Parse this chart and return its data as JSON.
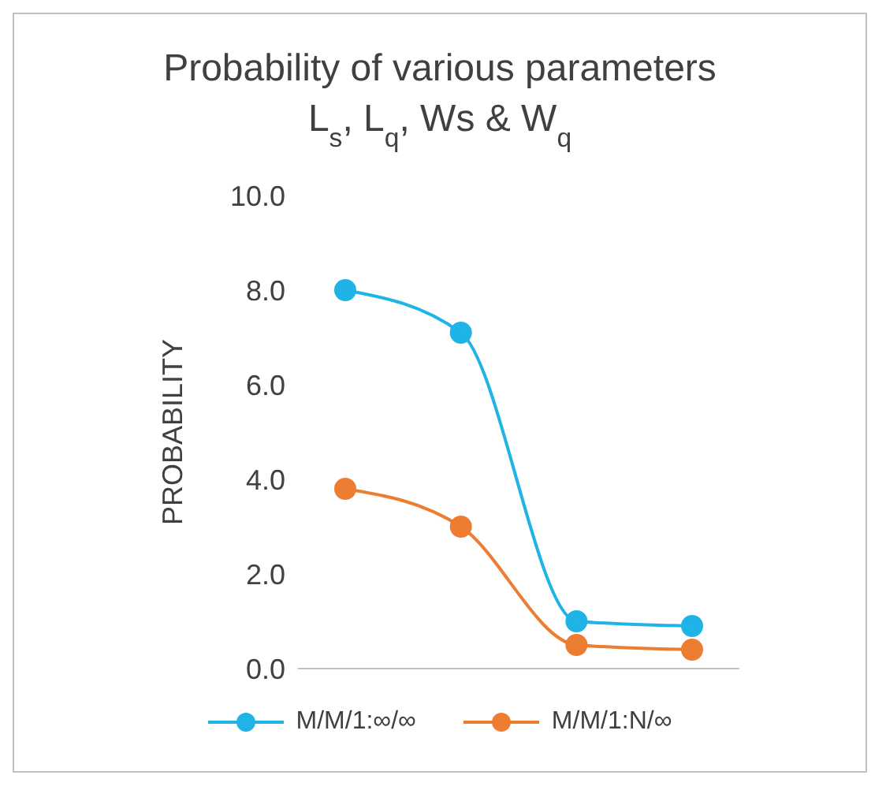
{
  "chart_data": {
    "type": "line",
    "title": "Probability of various parameters",
    "subtitle": "L$_{s}$, L$_{q}$, Ws & W$_{q}$",
    "ylabel": "PROBABILITY",
    "categories": [
      null,
      null,
      null,
      null
    ],
    "series": [
      {
        "name": "M/M/1:∞/∞",
        "color": "#1fb3e6",
        "values": [
          8.0,
          7.1,
          1.0,
          0.9
        ]
      },
      {
        "name": "M/M/1:N/∞",
        "color": "#ed7d31",
        "values": [
          3.8,
          3.0,
          0.5,
          0.4
        ]
      }
    ],
    "ylim": [
      0,
      10
    ],
    "yticks": [
      {
        "value": 0,
        "label": "0.0"
      },
      {
        "value": 2,
        "label": "2.0"
      },
      {
        "value": 4,
        "label": "4.0"
      },
      {
        "value": 6,
        "label": "6.0"
      },
      {
        "value": 8,
        "label": "8.0"
      },
      {
        "value": 10,
        "label": "10.0"
      }
    ],
    "grid": false,
    "legend": "bottom",
    "marker": "circle",
    "line_style": "solid"
  }
}
